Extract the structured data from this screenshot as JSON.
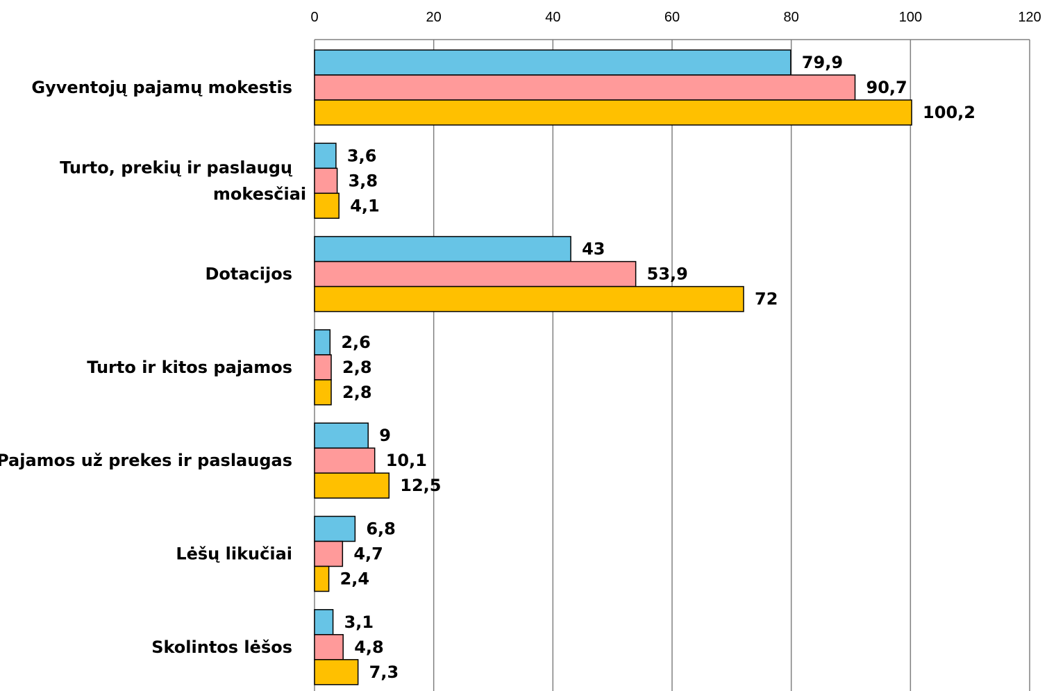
{
  "chart_data": {
    "type": "bar",
    "orientation": "horizontal",
    "xlim": [
      0,
      120
    ],
    "x_ticks": [
      "0",
      "20",
      "40",
      "60",
      "80",
      "100",
      "120"
    ],
    "x_tick_values": [
      0,
      20,
      40,
      60,
      80,
      100,
      120
    ],
    "x_axis_position": "top",
    "grid": true,
    "legend": "none",
    "categories": [
      [
        "Gyventojų pajamų  mokestis"
      ],
      [
        "Turto, prekių ir paslaugų",
        "mokesčiai"
      ],
      [
        "Dotacijos"
      ],
      [
        "Turto ir kitos pajamos"
      ],
      [
        "Pajamos už prekes ir paslaugas"
      ],
      [
        "Lėšų likučiai"
      ],
      [
        "Skolintos lėšos"
      ]
    ],
    "series": [
      {
        "color": "#67C4E6",
        "values": [
          79.9,
          3.6,
          43,
          2.6,
          9,
          6.8,
          3.1
        ],
        "labels": [
          "79,9",
          "3,6",
          "43",
          "2,6",
          "9",
          "6,8",
          "3,1"
        ]
      },
      {
        "color": "#FF9A9A",
        "values": [
          90.7,
          3.8,
          53.9,
          2.8,
          10.1,
          4.7,
          4.8
        ],
        "labels": [
          "90,7",
          "3,8",
          "53,9",
          "2,8",
          "10,1",
          "4,7",
          "4,8"
        ]
      },
      {
        "color": "#FFC000",
        "values": [
          100.2,
          4.1,
          72,
          2.8,
          12.5,
          2.4,
          7.3
        ],
        "labels": [
          "100,2",
          "4,1",
          "72",
          "2,8",
          "12,5",
          "2,4",
          "7,3"
        ]
      }
    ]
  }
}
